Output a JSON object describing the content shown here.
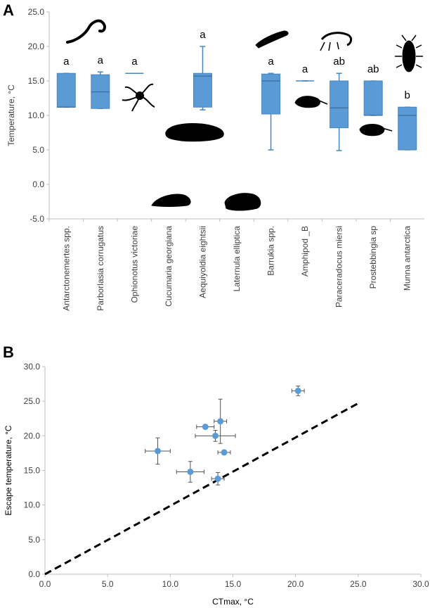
{
  "panels": {
    "a": "A",
    "b": "B"
  },
  "chart_data": [
    {
      "type": "boxplot",
      "ylabel": "Temperature, °C",
      "ylim": [
        -5,
        25
      ],
      "yticks": [
        "-5.0",
        "0.0",
        "5.0",
        "10.0",
        "15.0",
        "20.0",
        "25.0"
      ],
      "categories": [
        "Antarctonemertes spp.",
        "Parborlasia corrugatus",
        "Ophionotus victoriae",
        "Cucumaria georgiana",
        "Aequiyoldia eightsii",
        "Laternula elliptica",
        "Barrukia spp.",
        "Amphipod _B",
        "Paraceradocus miersi",
        "Prostebbingia sp",
        "Munna antarctica"
      ],
      "boxes": [
        {
          "min": 11.2,
          "q1": 11.2,
          "median": 11.2,
          "q3": 16.1,
          "max": 16.1,
          "group": "a"
        },
        {
          "min": 11.0,
          "q1": 11.0,
          "median": 13.4,
          "q3": 15.9,
          "max": 16.3,
          "group": "a"
        },
        {
          "min": 16.1,
          "q1": 16.1,
          "median": 16.1,
          "q3": 16.1,
          "max": 16.1,
          "group": "a"
        },
        null,
        {
          "min": 10.8,
          "q1": 11.2,
          "median": 15.7,
          "q3": 16.1,
          "max": 20.0,
          "group": "a"
        },
        null,
        {
          "min": 5.0,
          "q1": 10.2,
          "median": 15.0,
          "q3": 16.0,
          "max": 16.1,
          "group": "a"
        },
        {
          "min": 15.0,
          "q1": 15.0,
          "median": 15.0,
          "q3": 15.0,
          "max": 15.0,
          "group": "a"
        },
        {
          "min": 4.9,
          "q1": 8.2,
          "median": 11.1,
          "q3": 15.0,
          "max": 16.1,
          "group": "ab"
        },
        {
          "min": 10.0,
          "q1": 10.0,
          "median": 10.0,
          "q3": 15.0,
          "max": 15.0,
          "group": "ab"
        },
        {
          "min": 5.0,
          "q1": 5.0,
          "median": 10.0,
          "q3": 11.2,
          "max": 11.2,
          "group": "b"
        }
      ],
      "colors": {
        "box": "#5b9bd5",
        "edge": "#4a86c0",
        "text": "#404040"
      }
    },
    {
      "type": "scatter",
      "xlabel": "CTmax, °C",
      "ylabel": "Escape temperature, °C",
      "xlim": [
        0,
        30
      ],
      "ylim": [
        0,
        30
      ],
      "xticks": [
        "0.0",
        "5.0",
        "10.0",
        "15.0",
        "20.0",
        "25.0",
        "30.0"
      ],
      "yticks": [
        "0.0",
        "5.0",
        "10.0",
        "15.0",
        "20.0",
        "25.0",
        "30.0"
      ],
      "points": [
        {
          "x": 9.0,
          "y": 17.8,
          "xerr": 1.0,
          "yerr": 1.9
        },
        {
          "x": 11.6,
          "y": 14.8,
          "xerr": 1.1,
          "yerr": 1.5
        },
        {
          "x": 12.8,
          "y": 21.3,
          "xerr": 0.7,
          "yerr": 0.3
        },
        {
          "x": 13.6,
          "y": 20.0,
          "xerr": 1.6,
          "yerr": 0.8
        },
        {
          "x": 13.8,
          "y": 13.8,
          "xerr": 0.5,
          "yerr": 0.9
        },
        {
          "x": 14.0,
          "y": 22.1,
          "xerr": 0.5,
          "yerr": 3.2
        },
        {
          "x": 14.3,
          "y": 17.6,
          "xerr": 0.5,
          "yerr": 0.3
        },
        {
          "x": 20.2,
          "y": 26.5,
          "xerr": 0.5,
          "yerr": 0.7
        }
      ],
      "reference_line": {
        "x": [
          0,
          25
        ],
        "y": [
          0,
          24.7
        ],
        "style": "dashed"
      },
      "colors": {
        "point": "#5b9bd5",
        "line": "#000000"
      }
    }
  ]
}
